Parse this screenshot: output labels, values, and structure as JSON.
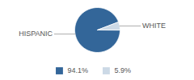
{
  "chart_data": {
    "type": "pie",
    "categories": [
      "HISPANIC",
      "WHITE"
    ],
    "values": [
      94.1,
      5.9
    ],
    "value_labels": [
      "94.1%",
      "5.9%"
    ],
    "colors": [
      "#336699",
      "#ccd9e6"
    ],
    "legend": "bottom"
  }
}
